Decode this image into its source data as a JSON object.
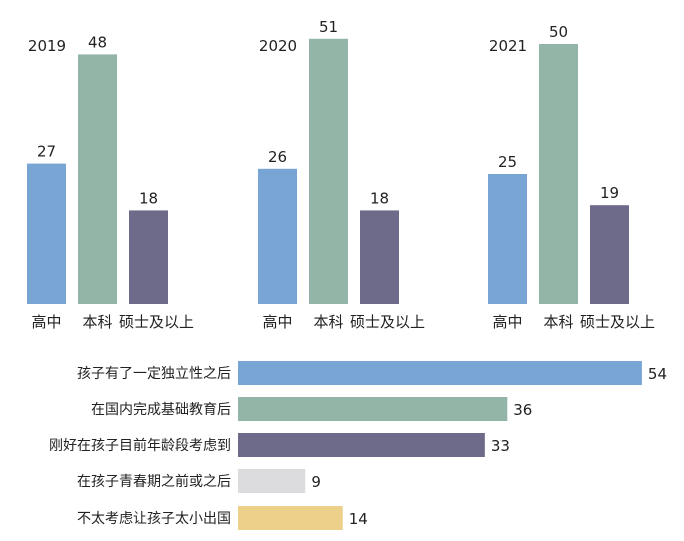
{
  "chart_data": [
    {
      "type": "bar",
      "categories": [
        "高中",
        "本科",
        "硕士及以上"
      ],
      "series": [
        {
          "name": "2019",
          "values": [
            27,
            48,
            18
          ]
        },
        {
          "name": "2020",
          "values": [
            26,
            51,
            18
          ]
        },
        {
          "name": "2021",
          "values": [
            25,
            50,
            19
          ]
        }
      ],
      "colors": [
        "#78a5d4",
        "#93b5a8",
        "#6e6a8a"
      ],
      "grid": false
    },
    {
      "type": "bar",
      "orientation": "horizontal",
      "categories": [
        "孩子有了一定独立性之后",
        "在国内完成基础教育后",
        "刚好在孩子目前年龄段考虑到",
        "在孩子青春期之前或之后",
        "不太考虑让孩子太小出国"
      ],
      "values": [
        54,
        36,
        33,
        9,
        14
      ],
      "colors": [
        "#78a5d4",
        "#93b5a8",
        "#6e6a8a",
        "#dcdcde",
        "#edd08a"
      ],
      "grid": false
    }
  ]
}
